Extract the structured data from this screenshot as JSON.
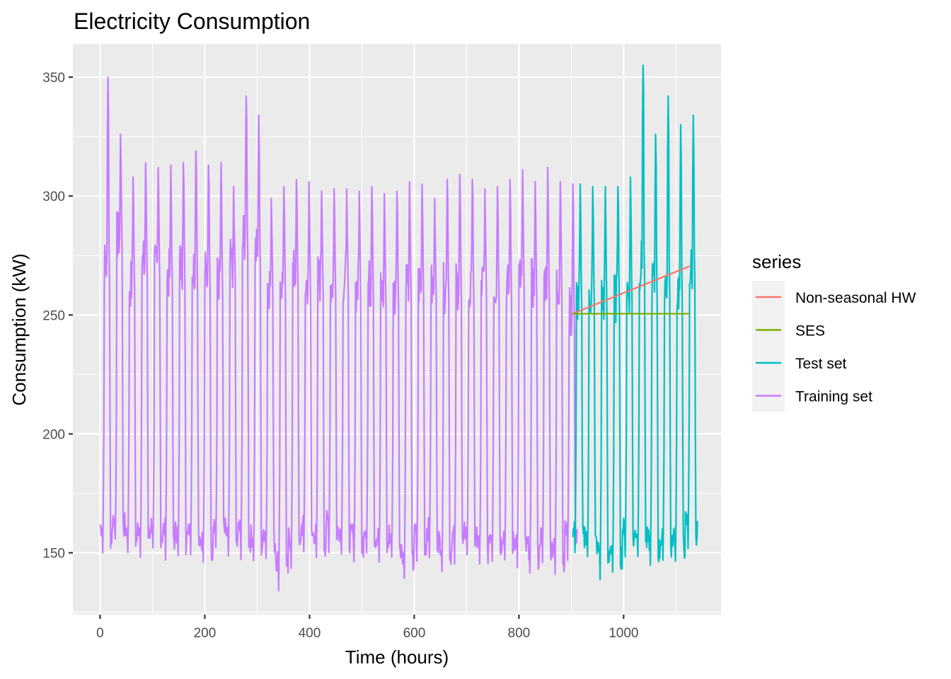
{
  "chart_data": {
    "type": "line",
    "title": "Electricity Consumption",
    "xlabel": "Time (hours)",
    "ylabel": "Consumption (kW)",
    "xlim": [
      -52,
      1186
    ],
    "ylim": [
      124,
      364
    ],
    "x_ticks": [
      0,
      200,
      400,
      600,
      800,
      1000
    ],
    "y_ticks": [
      150,
      200,
      250,
      300,
      350
    ],
    "grid": true,
    "legend": {
      "title": "series",
      "position": "right",
      "entries": [
        {
          "name": "Non-seasonal HW",
          "color": "#F8766D"
        },
        {
          "name": "SES",
          "color": "#7CAE00"
        },
        {
          "name": "Test set",
          "color": "#00BFC4"
        },
        {
          "name": "Training set",
          "color": "#C77CFF"
        }
      ]
    },
    "series": [
      {
        "name": "Training set",
        "color": "#C77CFF",
        "x_start": 0,
        "hours_per_day": 24,
        "note": "hourly series summarized as daily peak / shoulder / trough levels (kW)",
        "daily_peak": [
          350,
          326,
          308,
          314,
          312,
          313,
          314,
          319,
          313,
          314,
          304,
          342,
          334,
          299,
          304,
          307,
          306,
          302,
          303,
          303,
          302,
          304,
          301,
          302,
          306,
          305,
          299,
          307,
          309,
          307,
          303,
          304,
          307,
          311,
          306,
          312,
          306,
          305
        ],
        "daily_shoulder": [
          270,
          282,
          262,
          270,
          268,
          266,
          270,
          268,
          266,
          264,
          270,
          280,
          276,
          262,
          262,
          266,
          262,
          264,
          262,
          264,
          260,
          262,
          258,
          258,
          264,
          262,
          260,
          260,
          262,
          258,
          262,
          262,
          260,
          264,
          262,
          264,
          262,
          250
        ],
        "daily_trough": [
          148,
          152,
          147,
          148,
          149,
          147,
          146,
          149,
          143,
          150,
          145,
          147,
          144,
          146,
          134,
          143,
          148,
          145,
          150,
          147,
          145,
          148,
          144,
          145,
          137,
          145,
          147,
          141,
          144,
          146,
          142,
          145,
          145,
          143,
          139,
          144,
          139,
          146
        ]
      },
      {
        "name": "Test set",
        "color": "#00BFC4",
        "x_start": 902,
        "hours_per_day": 24,
        "daily_peak": [
          305,
          304,
          304,
          304,
          308,
          355,
          326,
          342,
          330,
          334
        ],
        "daily_shoulder": [
          256,
          258,
          256,
          256,
          260,
          270,
          262,
          264,
          260,
          268
        ],
        "daily_trough": [
          147,
          145,
          138,
          140,
          147,
          146,
          142,
          143,
          144,
          150
        ]
      },
      {
        "name": "Non-seasonal HW",
        "color": "#F8766D",
        "x": [
          902,
          1126
        ],
        "y": [
          250.5,
          270.5
        ]
      },
      {
        "name": "SES",
        "color": "#7CAE00",
        "x": [
          902,
          1126
        ],
        "y": [
          250.5,
          250.5
        ]
      }
    ]
  }
}
